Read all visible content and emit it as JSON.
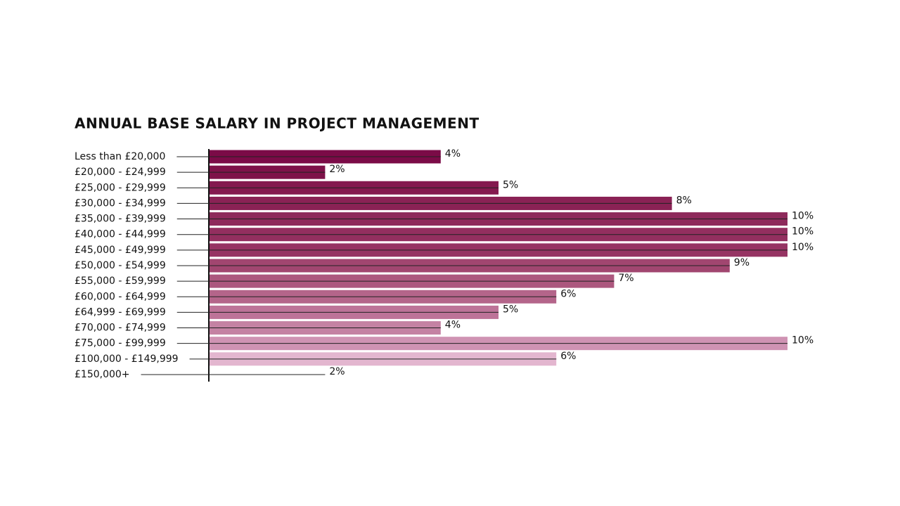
{
  "chart_data": {
    "type": "bar",
    "orientation": "horizontal",
    "title": "ANNUAL BASE SALARY IN PROJECT MANAGEMENT",
    "categories": [
      "Less than £20,000",
      "£20,000 - £24,999",
      "£25,000 - £29,999",
      "£30,000 - £34,999",
      "£35,000 - £39,999",
      "£40,000 - £44,999",
      "£45,000 - £49,999",
      "£50,000 - £54,999",
      "£55,000 - £59,999",
      "£60,000 - £64,999",
      "£64,999 - £69,999",
      "£70,000 - £74,999",
      "£75,000 - £99,999",
      "£100,000 - £149,999",
      "£150,000+"
    ],
    "values": [
      4,
      2,
      5,
      8,
      10,
      10,
      10,
      9,
      7,
      6,
      5,
      4,
      10,
      6,
      2
    ],
    "value_labels": [
      "4%",
      "2%",
      "5%",
      "8%",
      "10%",
      "10%",
      "10%",
      "9%",
      "7%",
      "6%",
      "5%",
      "4%",
      "10%",
      "6%",
      "2%"
    ],
    "colors": [
      "#7b0b47",
      "#7e1249",
      "#84194f",
      "#8a2255",
      "#8e2a5b",
      "#932f5f",
      "#963463",
      "#a14670",
      "#ac577e",
      "#b4658a",
      "#bd7398",
      "#c482a3",
      "#cf93b3",
      "#e3b6cf",
      null
    ],
    "xlim": [
      0,
      10
    ]
  }
}
